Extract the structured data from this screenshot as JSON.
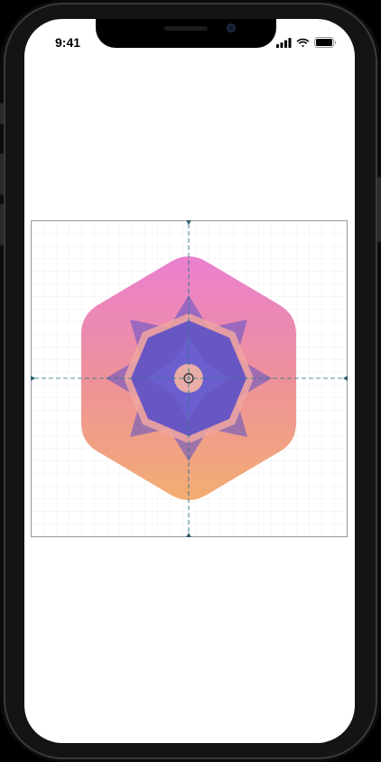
{
  "status_bar": {
    "time": "9:41"
  },
  "icon_template": {
    "grid": true,
    "guides": [
      "vertical-center",
      "horizontal-center"
    ],
    "icon_shape": "rounded-hexagon",
    "gradient_top": "#ea7fd0",
    "gradient_bottom": "#f2ad72",
    "emblem_color": "#5a4fc6",
    "guide_color": "#2e7d8c"
  }
}
